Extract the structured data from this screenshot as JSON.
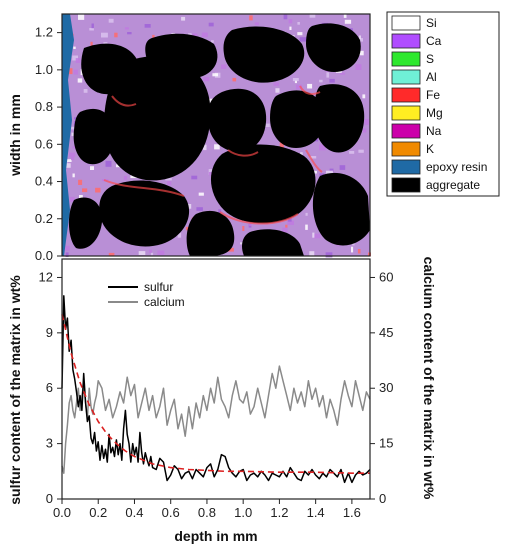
{
  "map_legend": {
    "items": [
      {
        "label": "Si",
        "color": "#ffffff"
      },
      {
        "label": "Ca",
        "color": "#b04dff"
      },
      {
        "label": "S",
        "color": "#2ee82e"
      },
      {
        "label": "Al",
        "color": "#6ff0d6"
      },
      {
        "label": "Fe",
        "color": "#ff2a2a"
      },
      {
        "label": "Mg",
        "color": "#ffee22"
      },
      {
        "label": "Na",
        "color": "#cc00aa"
      },
      {
        "label": "K",
        "color": "#f08a00"
      },
      {
        "label": "epoxy resin",
        "color": "#1f6aa5"
      },
      {
        "label": "aggregate",
        "color": "#000000"
      }
    ]
  },
  "chart_data": [
    {
      "type": "heatmap",
      "ylabel": "width in mm",
      "ylim": [
        0,
        1.3
      ],
      "yticks": [
        "0.0",
        "0.2",
        "0.4",
        "0.6",
        "0.8",
        "1.0",
        "1.2"
      ],
      "xlim": [
        0,
        1.7
      ]
    },
    {
      "type": "line",
      "xlabel": "depth in mm",
      "ylabel": "sulfur content of the matrix in wt%",
      "y2label": "calcium content of the matrix in wt%",
      "xlim": [
        0,
        1.7
      ],
      "ylim": [
        0,
        13
      ],
      "y2lim": [
        0,
        65
      ],
      "xticks": [
        "0.0",
        "0.2",
        "0.4",
        "0.6",
        "0.8",
        "1.0",
        "1.2",
        "1.4",
        "1.6"
      ],
      "yticks": [
        "0",
        "3",
        "6",
        "9",
        "12"
      ],
      "y2ticks": [
        "0",
        "15",
        "30",
        "45",
        "60"
      ],
      "legend_position": "top-center",
      "series": [
        {
          "name": "sulfur",
          "axis": "left",
          "color": "#000000",
          "x": [
            0.0,
            0.01,
            0.02,
            0.03,
            0.04,
            0.05,
            0.06,
            0.07,
            0.08,
            0.09,
            0.1,
            0.11,
            0.12,
            0.13,
            0.14,
            0.15,
            0.16,
            0.17,
            0.18,
            0.19,
            0.2,
            0.21,
            0.22,
            0.23,
            0.24,
            0.25,
            0.26,
            0.27,
            0.28,
            0.29,
            0.3,
            0.31,
            0.32,
            0.33,
            0.34,
            0.35,
            0.36,
            0.37,
            0.38,
            0.39,
            0.4,
            0.41,
            0.42,
            0.43,
            0.44,
            0.45,
            0.46,
            0.47,
            0.48,
            0.49,
            0.5,
            0.52,
            0.54,
            0.56,
            0.58,
            0.6,
            0.62,
            0.64,
            0.66,
            0.68,
            0.7,
            0.72,
            0.74,
            0.76,
            0.78,
            0.8,
            0.82,
            0.84,
            0.86,
            0.88,
            0.9,
            0.92,
            0.94,
            0.96,
            0.98,
            1.0,
            1.02,
            1.04,
            1.06,
            1.08,
            1.1,
            1.12,
            1.14,
            1.16,
            1.18,
            1.2,
            1.22,
            1.24,
            1.26,
            1.28,
            1.3,
            1.32,
            1.34,
            1.36,
            1.38,
            1.4,
            1.42,
            1.44,
            1.46,
            1.48,
            1.5,
            1.52,
            1.54,
            1.56,
            1.58,
            1.6,
            1.62,
            1.64,
            1.66,
            1.68,
            1.7
          ],
          "y": [
            6.0,
            11.0,
            9.2,
            9.8,
            8.0,
            8.6,
            7.0,
            6.5,
            5.8,
            5.0,
            5.6,
            4.8,
            6.8,
            5.2,
            4.2,
            4.5,
            3.3,
            3.0,
            3.6,
            2.6,
            3.1,
            2.1,
            2.9,
            2.2,
            2.7,
            2.0,
            3.5,
            2.5,
            2.8,
            2.3,
            3.2,
            2.4,
            3.0,
            2.1,
            3.8,
            4.8,
            3.5,
            3.0,
            2.0,
            3.0,
            2.4,
            2.8,
            2.0,
            3.6,
            2.5,
            1.9,
            2.5,
            2.1,
            1.8,
            2.3,
            1.7,
            1.6,
            2.2,
            2.0,
            1.0,
            1.3,
            1.8,
            1.6,
            1.1,
            1.4,
            1.5,
            1.1,
            1.6,
            1.4,
            1.2,
            1.7,
            1.9,
            1.2,
            1.6,
            2.4,
            2.3,
            1.7,
            1.4,
            1.2,
            1.5,
            1.6,
            1.0,
            1.3,
            1.4,
            1.2,
            1.5,
            1.3,
            1.0,
            1.4,
            1.3,
            1.2,
            1.5,
            1.2,
            1.7,
            1.4,
            1.1,
            1.0,
            1.5,
            1.3,
            1.6,
            1.3,
            1.1,
            1.4,
            1.2,
            1.6,
            1.4,
            1.2,
            1.6,
            0.9,
            1.4,
            0.9,
            1.3,
            1.5,
            1.3,
            1.4,
            1.6
          ]
        },
        {
          "name": "calcium",
          "axis": "right",
          "color": "#8a8a8a",
          "x": [
            0.0,
            0.01,
            0.02,
            0.03,
            0.04,
            0.05,
            0.06,
            0.07,
            0.08,
            0.09,
            0.1,
            0.11,
            0.12,
            0.13,
            0.14,
            0.15,
            0.16,
            0.17,
            0.18,
            0.19,
            0.2,
            0.22,
            0.24,
            0.26,
            0.28,
            0.3,
            0.32,
            0.34,
            0.36,
            0.38,
            0.4,
            0.42,
            0.44,
            0.46,
            0.48,
            0.5,
            0.52,
            0.54,
            0.56,
            0.58,
            0.6,
            0.62,
            0.64,
            0.66,
            0.68,
            0.7,
            0.72,
            0.74,
            0.76,
            0.78,
            0.8,
            0.82,
            0.84,
            0.86,
            0.88,
            0.9,
            0.92,
            0.94,
            0.96,
            0.98,
            1.0,
            1.02,
            1.04,
            1.06,
            1.08,
            1.1,
            1.12,
            1.14,
            1.16,
            1.18,
            1.2,
            1.22,
            1.24,
            1.26,
            1.28,
            1.3,
            1.32,
            1.34,
            1.36,
            1.38,
            1.4,
            1.42,
            1.44,
            1.46,
            1.48,
            1.5,
            1.52,
            1.54,
            1.56,
            1.58,
            1.6,
            1.62,
            1.64,
            1.66,
            1.68,
            1.7
          ],
          "y": [
            9,
            7,
            15,
            20,
            26,
            28,
            24,
            22,
            26,
            30,
            24,
            28,
            31,
            26,
            22,
            30,
            25,
            23,
            26,
            28,
            32,
            30,
            24,
            27,
            22,
            25,
            29,
            26,
            33,
            28,
            31,
            22,
            26,
            30,
            24,
            28,
            22,
            25,
            30,
            20,
            24,
            27,
            19,
            23,
            17,
            25,
            19,
            26,
            22,
            28,
            24,
            30,
            26,
            33,
            27,
            25,
            22,
            28,
            32,
            27,
            26,
            29,
            23,
            25,
            30,
            26,
            22,
            28,
            34,
            30,
            36,
            32,
            28,
            24,
            30,
            26,
            29,
            25,
            32,
            27,
            30,
            25,
            28,
            22,
            27,
            24,
            20,
            27,
            32,
            28,
            25,
            32,
            28,
            24,
            29,
            27
          ]
        },
        {
          "name": "",
          "axis": "left",
          "style": "dashed",
          "color": "#dd2222",
          "x": [
            0.0,
            0.05,
            0.1,
            0.15,
            0.2,
            0.25,
            0.3,
            0.35,
            0.4,
            0.45,
            0.5,
            0.6,
            0.7,
            0.8,
            0.9,
            1.0,
            1.2,
            1.4,
            1.6,
            1.7
          ],
          "y": [
            10.0,
            7.9,
            6.3,
            5.1,
            4.2,
            3.5,
            3.0,
            2.6,
            2.3,
            2.1,
            1.9,
            1.7,
            1.6,
            1.55,
            1.5,
            1.5,
            1.45,
            1.45,
            1.4,
            1.4
          ]
        }
      ]
    }
  ]
}
